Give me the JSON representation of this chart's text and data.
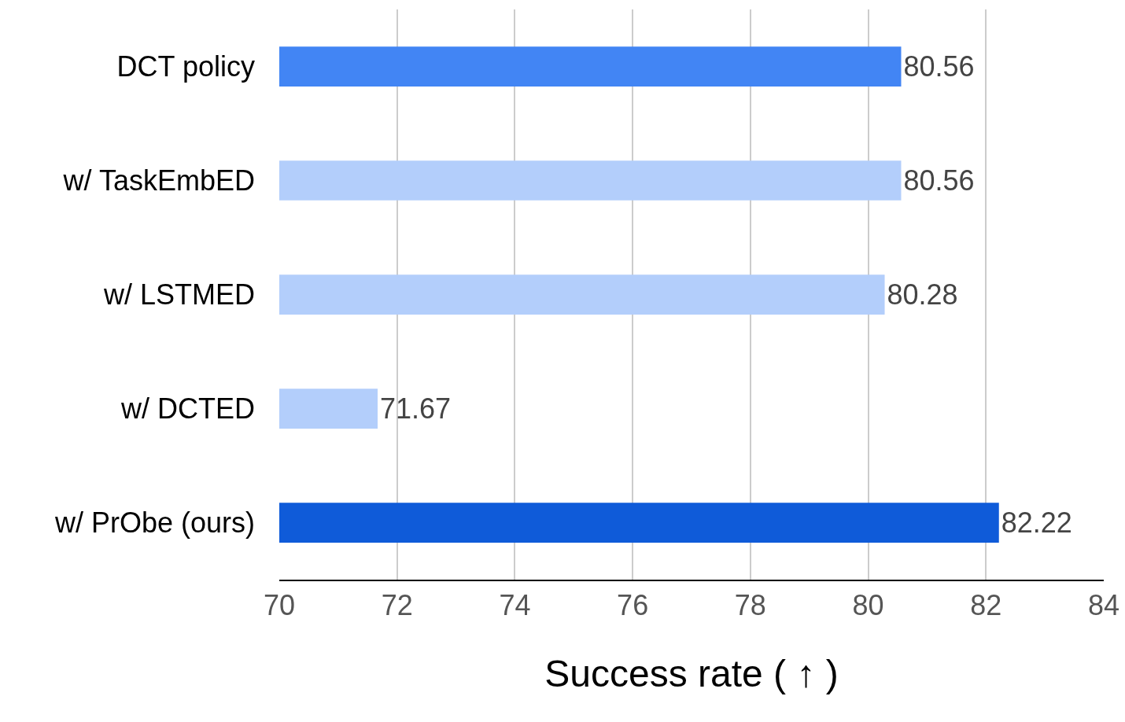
{
  "chart_data": {
    "type": "bar",
    "orientation": "horizontal",
    "xlabel": "Success rate ( ↑ )",
    "categories": [
      "DCT policy",
      "w/ TaskEmbED",
      "w/ LSTMED",
      "w/ DCTED",
      "w/ PrObe (ours)"
    ],
    "values": [
      80.56,
      80.56,
      80.28,
      71.67,
      82.22
    ],
    "colors": [
      "#4285f4",
      "#b3cefb",
      "#b3cefb",
      "#b3cefb",
      "#0f5bd9"
    ],
    "xlim": [
      70,
      84
    ],
    "xticks": [
      70,
      72,
      74,
      76,
      78,
      80,
      82,
      84
    ],
    "grid": "x",
    "data_labels": true
  }
}
